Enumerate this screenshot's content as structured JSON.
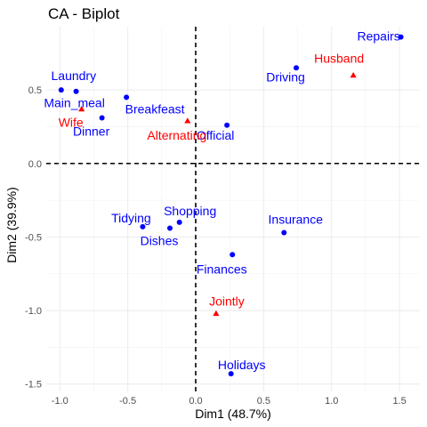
{
  "chart_data": {
    "type": "scatter",
    "title": "CA - Biplot",
    "xlabel": "Dim1 (48.7%)",
    "ylabel": "Dim2 (39.9%)",
    "xlim": [
      -1.1,
      1.65
    ],
    "ylim": [
      -1.55,
      0.93
    ],
    "x_ticks": [
      -1.0,
      -0.5,
      0.0,
      0.5,
      1.0,
      1.5
    ],
    "x_tick_labels": [
      "-1.0",
      "-0.5",
      "0.0",
      "0.5",
      "1.0",
      "1.5"
    ],
    "y_ticks": [
      -1.5,
      -1.0,
      -0.5,
      0.0,
      0.5
    ],
    "y_tick_labels": [
      "-1.5",
      "-1.0",
      "-0.5",
      "0.0",
      "0.5"
    ],
    "grid": true,
    "reference_lines": {
      "x": 0,
      "y": 0,
      "style": "dashed"
    },
    "series": [
      {
        "color": "#0000FF",
        "marker": "circle",
        "points": [
          {
            "label": "Laundry",
            "x": -0.99,
            "y": 0.5
          },
          {
            "label": "Main_meal",
            "x": -0.88,
            "y": 0.49
          },
          {
            "label": "Dinner",
            "x": -0.69,
            "y": 0.31
          },
          {
            "label": "Breakfeast",
            "x": -0.51,
            "y": 0.45
          },
          {
            "label": "Tidying",
            "x": -0.39,
            "y": -0.43
          },
          {
            "label": "Dishes",
            "x": -0.19,
            "y": -0.44
          },
          {
            "label": "Shopping",
            "x": -0.12,
            "y": -0.4
          },
          {
            "label": "Official",
            "x": 0.23,
            "y": 0.26
          },
          {
            "label": "Driving",
            "x": 0.74,
            "y": 0.65
          },
          {
            "label": "Finances",
            "x": 0.27,
            "y": -0.62
          },
          {
            "label": "Insurance",
            "x": 0.65,
            "y": -0.47
          },
          {
            "label": "Repairs",
            "x": 1.51,
            "y": 0.86
          },
          {
            "label": "Holidays",
            "x": 0.26,
            "y": -1.43
          }
        ]
      },
      {
        "color": "#FF0000",
        "marker": "triangle",
        "points": [
          {
            "label": "Wife",
            "x": -0.84,
            "y": 0.37
          },
          {
            "label": "Alternating",
            "x": -0.06,
            "y": 0.29
          },
          {
            "label": "Husband",
            "x": 1.16,
            "y": 0.6
          },
          {
            "label": "Jointly",
            "x": 0.15,
            "y": -1.02
          }
        ]
      }
    ]
  }
}
